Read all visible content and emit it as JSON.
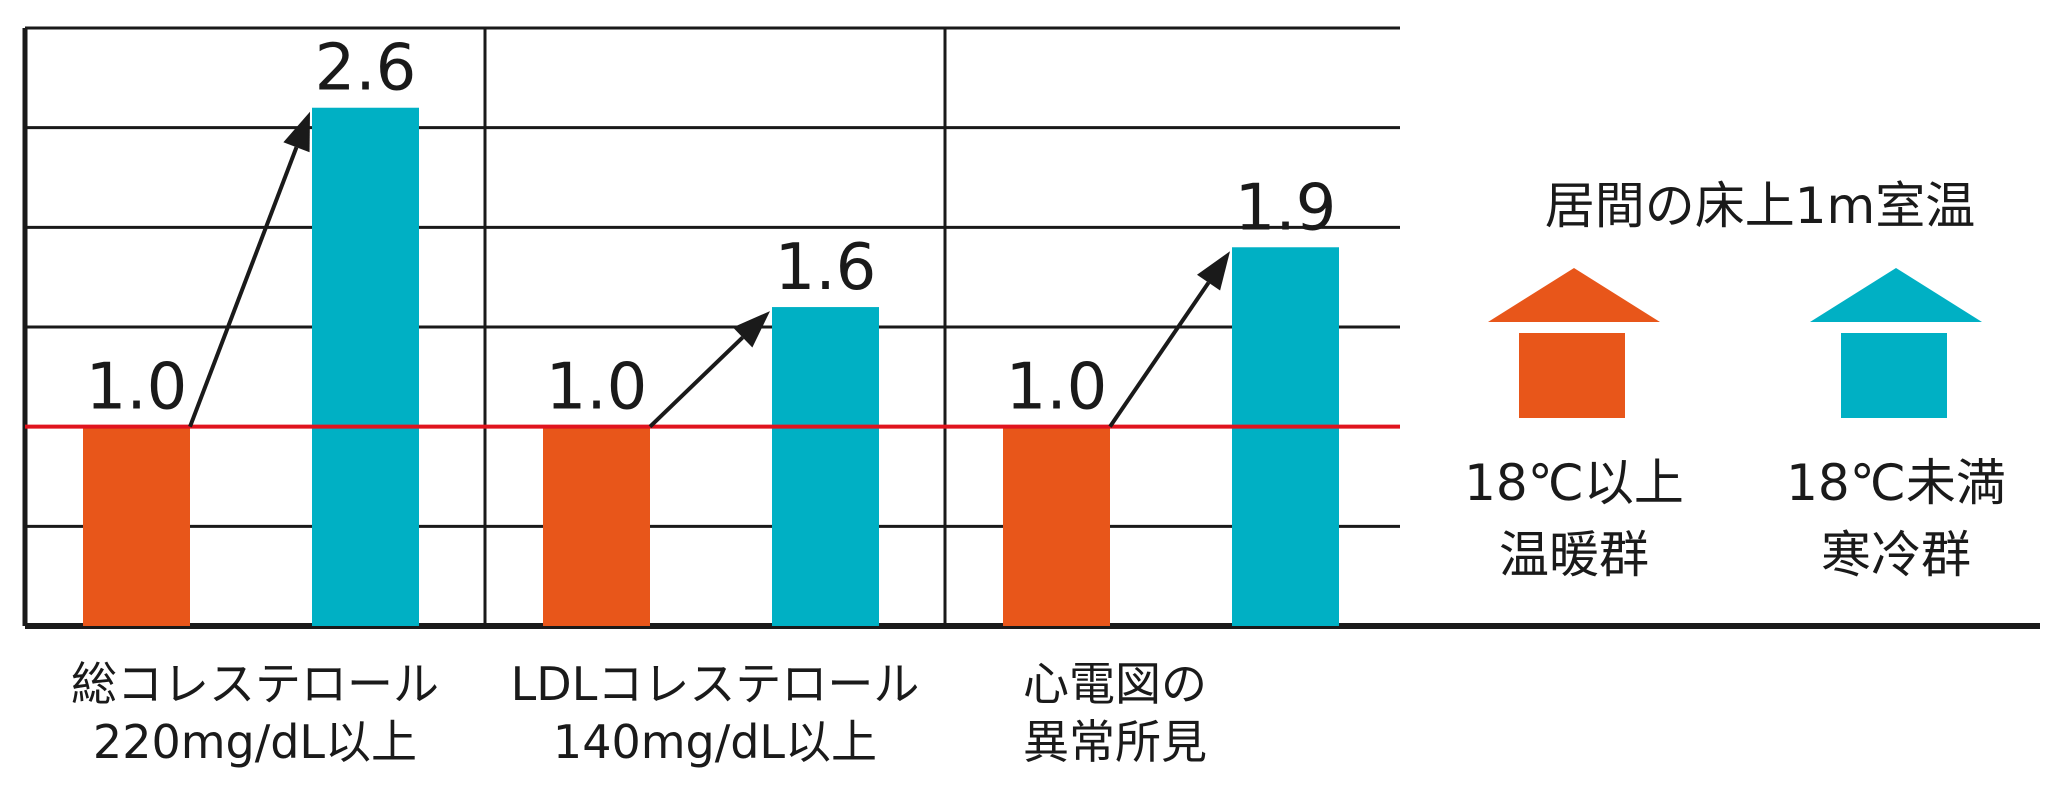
{
  "chart_data": {
    "type": "bar",
    "categories": [
      [
        "総コレステロール",
        "220mg/dL以上"
      ],
      [
        "LDLコレステロール",
        "140mg/dL以上"
      ],
      [
        "心電図の",
        "異常所見"
      ]
    ],
    "series": [
      {
        "name": "温暖群",
        "values": [
          1.0,
          1.0,
          1.0
        ]
      },
      {
        "name": "寒冷群",
        "values": [
          2.6,
          1.6,
          1.9
        ]
      }
    ],
    "value_labels": [
      [
        "1.0",
        "2.6"
      ],
      [
        "1.0",
        "1.6"
      ],
      [
        "1.0",
        "1.9"
      ]
    ],
    "ylim": [
      0,
      3
    ],
    "reference_line": 1.0,
    "grid": true,
    "legend": {
      "title": "居間の床上1m室温",
      "items": [
        {
          "condition": "18℃以上",
          "name": "温暖群",
          "color": "#e8561a"
        },
        {
          "condition": "18℃未満",
          "name": "寒冷群",
          "color": "#00b0c4"
        }
      ],
      "placement": "right"
    },
    "colors": {
      "warm": "#e8561a",
      "cold": "#00b0c4",
      "reference": "#e0141e",
      "axis": "#1a1a1a"
    }
  }
}
